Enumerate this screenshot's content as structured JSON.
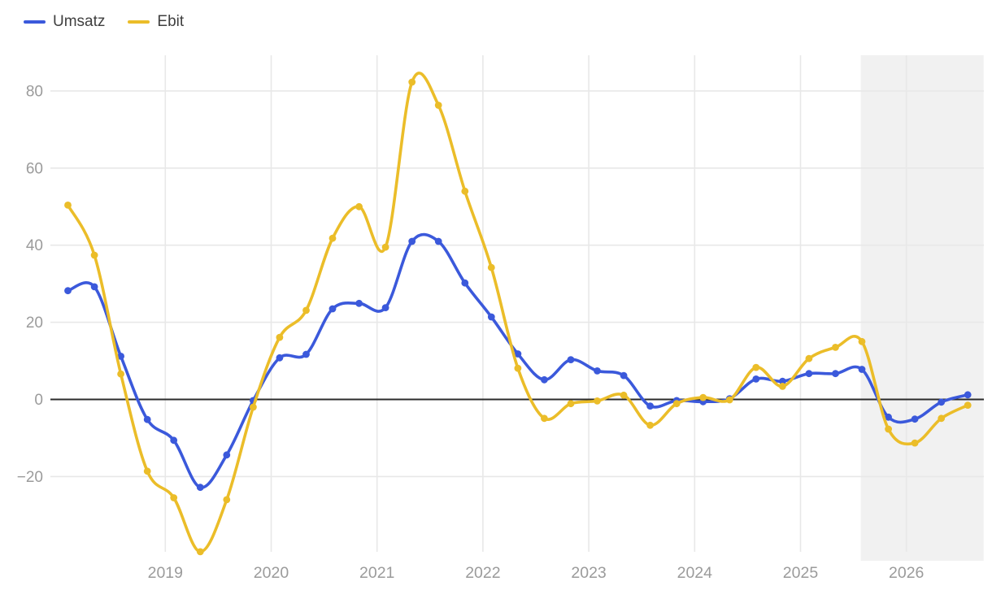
{
  "chart_data": {
    "type": "line",
    "title": "",
    "xlabel": "",
    "ylabel": "",
    "x": [
      2018.08,
      2018.33,
      2018.58,
      2018.83,
      2019.08,
      2019.33,
      2019.58,
      2019.83,
      2020.08,
      2020.33,
      2020.58,
      2020.83,
      2021.08,
      2021.33,
      2021.58,
      2021.83,
      2022.08,
      2022.33,
      2022.58,
      2022.83,
      2023.08,
      2023.33,
      2023.58,
      2023.83,
      2024.08,
      2024.33,
      2024.58,
      2024.83,
      2025.08,
      2025.33,
      2025.58,
      2025.83,
      2026.08,
      2026.33,
      2026.58
    ],
    "series": [
      {
        "name": "Umsatz",
        "color": "#3B59DB",
        "values": [
          28.2,
          29.2,
          11.2,
          -5.2,
          -10.6,
          -22.8,
          -14.4,
          -0.3,
          10.8,
          11.7,
          23.5,
          24.9,
          23.8,
          41,
          41,
          30.2,
          21.4,
          11.8,
          5.1,
          10.3,
          7.4,
          6.2,
          -1.7,
          -0.3,
          -0.6,
          0.2,
          5.3,
          4.7,
          6.7,
          6.7,
          7.8,
          -4.6,
          -5.1,
          -0.7,
          1.2
        ]
      },
      {
        "name": "Ebit",
        "color": "#EBBD29",
        "values": [
          50.4,
          37.4,
          6.6,
          -18.6,
          -25.5,
          -39.5,
          -26,
          -2,
          16.1,
          23.1,
          41.8,
          50,
          39.5,
          82.3,
          76.3,
          54,
          34.2,
          8.1,
          -4.9,
          -1.1,
          -0.4,
          1.1,
          -6.7,
          -1.1,
          0.5,
          -0.1,
          8.3,
          3.4,
          10.6,
          13.5,
          15,
          -7.7,
          -11.3,
          -4.9,
          -1.5
        ]
      }
    ],
    "x_ticks": [
      2019,
      2020,
      2021,
      2022,
      2023,
      2024,
      2025,
      2026
    ],
    "x_tick_labels": [
      "2019",
      "2020",
      "2021",
      "2022",
      "2023",
      "2024",
      "2025",
      "2026"
    ],
    "y_ticks": [
      80,
      60,
      40,
      20,
      0,
      -20
    ],
    "y_tick_labels": [
      "80",
      "60",
      "40",
      "20",
      "0",
      "−20"
    ],
    "xlim": [
      2017.92,
      2026.73
    ],
    "ylim": [
      -39.6,
      88.8
    ],
    "grid": true,
    "zero_line": true,
    "legend_position": "top-left",
    "forecast_region": {
      "start": 2025.57,
      "end": 2026.73,
      "color": "#F1F1F1"
    }
  },
  "colors": {
    "background": "#FFFFFF",
    "grid": "#E8E8E8",
    "zero_line": "#2B2B2B",
    "tick_text": "#9B9B9B",
    "legend_text": "#3F3F3F"
  }
}
